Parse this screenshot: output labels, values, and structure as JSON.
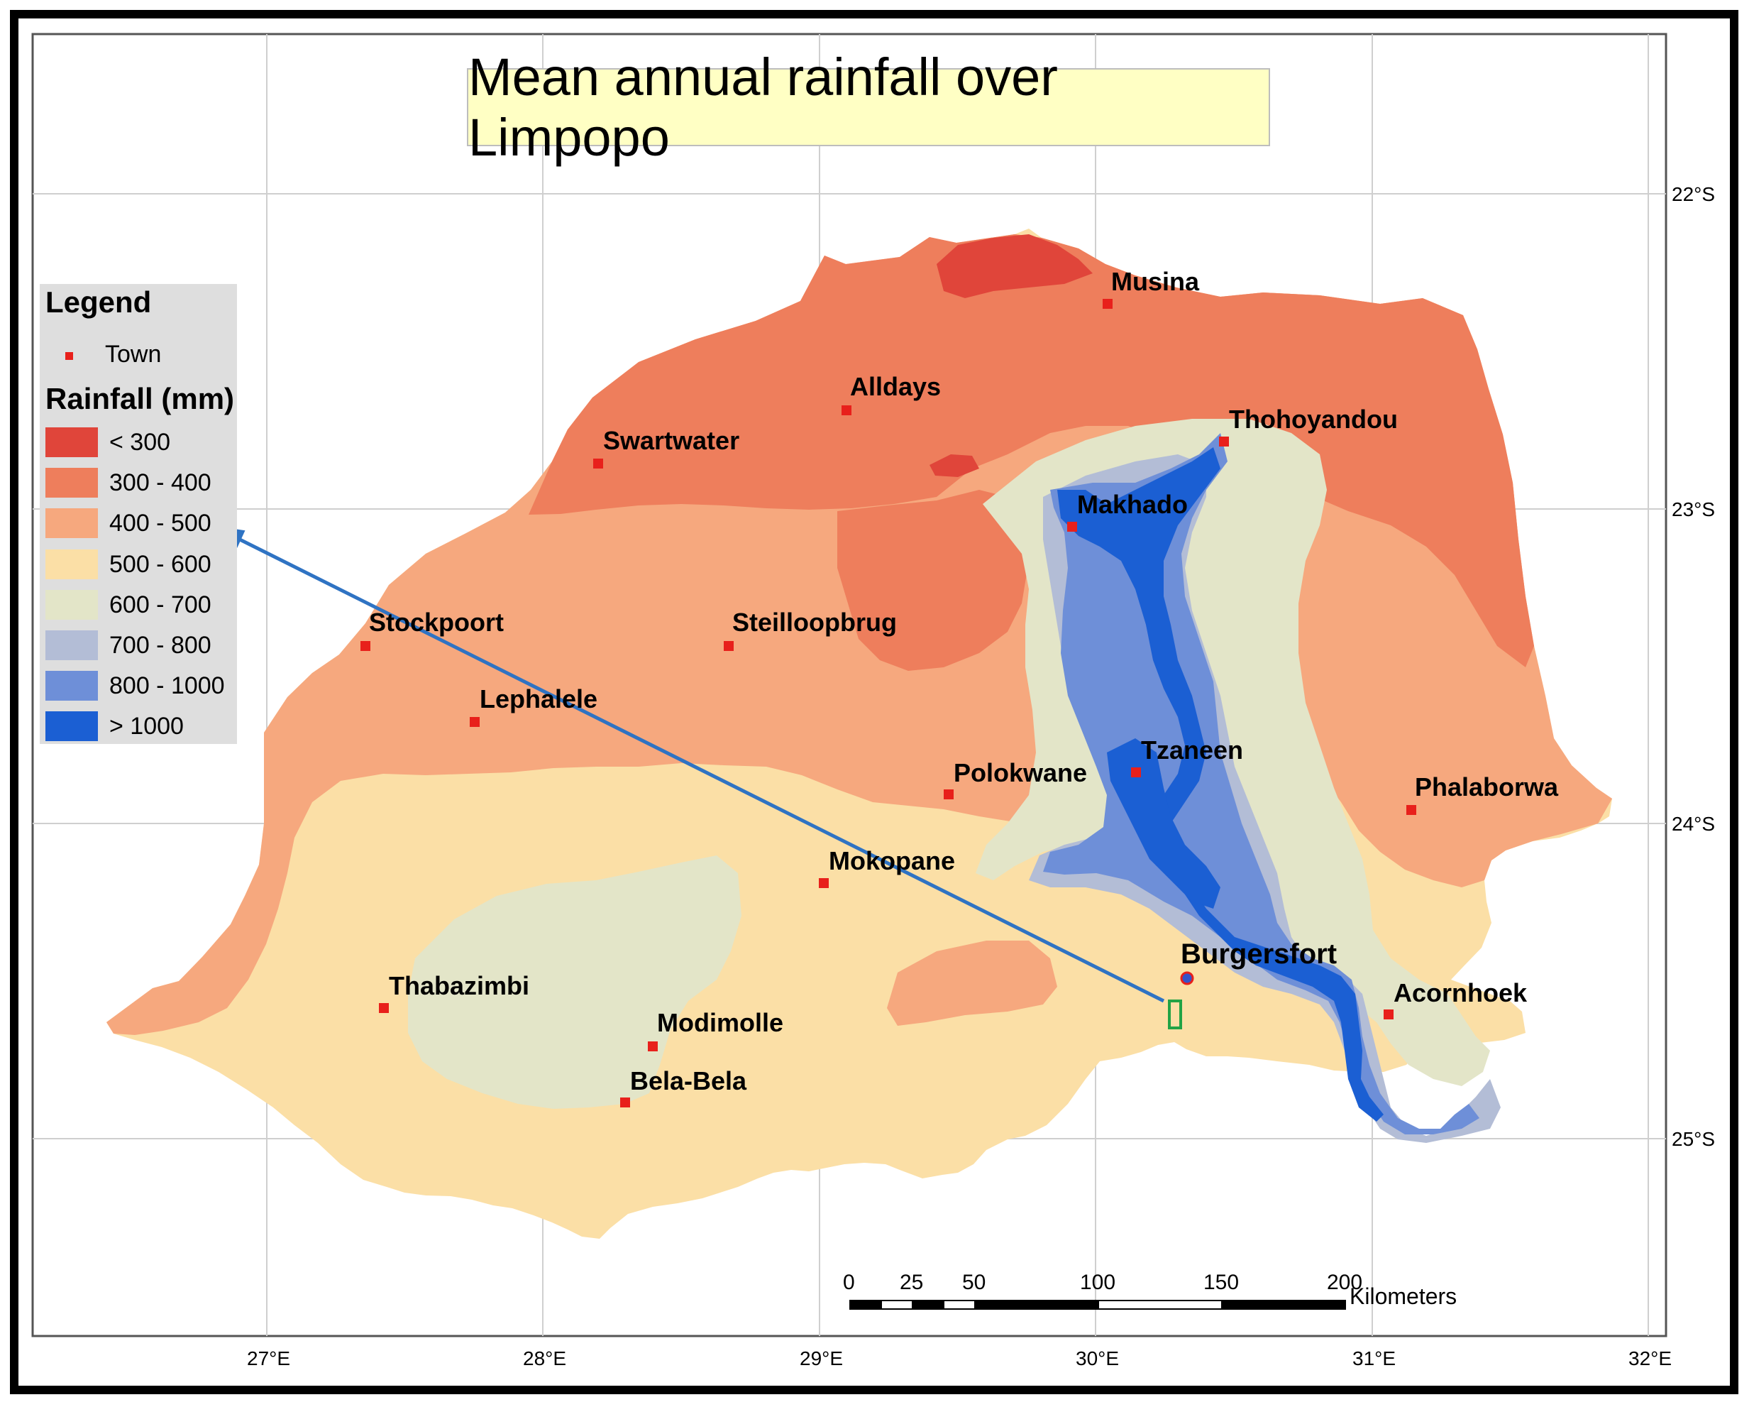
{
  "title": "Mean annual rainfall over Limpopo",
  "legend": {
    "heading": "Legend",
    "town_label": "Town",
    "rainfall_heading": "Rainfall (mm)",
    "classes": [
      {
        "label": "< 300",
        "color": "#e0453a"
      },
      {
        "label": "300 - 400",
        "color": "#ee7e5c"
      },
      {
        "label": "400 - 500",
        "color": "#f6a87e"
      },
      {
        "label": "500 - 600",
        "color": "#fbdfa6"
      },
      {
        "label": "600 - 700",
        "color": "#e3e5c8"
      },
      {
        "label": "700 - 800",
        "color": "#b3bdd6"
      },
      {
        "label": "800 - 1000",
        "color": "#6e8fd8"
      },
      {
        "label": "> 1000",
        "color": "#1b5fd3"
      }
    ]
  },
  "towns": [
    {
      "name": "Musina"
    },
    {
      "name": "Alldays"
    },
    {
      "name": "Swartwater"
    },
    {
      "name": "Thohoyandou"
    },
    {
      "name": "Makhado"
    },
    {
      "name": "Stockpoort"
    },
    {
      "name": "Steilloopbrug"
    },
    {
      "name": "Lephalele"
    },
    {
      "name": "Polokwane"
    },
    {
      "name": "Tzaneen"
    },
    {
      "name": "Phalaborwa"
    },
    {
      "name": "Mokopane"
    },
    {
      "name": "Burgersfort"
    },
    {
      "name": "Acornhoek"
    },
    {
      "name": "Thabazimbi"
    },
    {
      "name": "Modimolle"
    },
    {
      "name": "Bela-Bela"
    }
  ],
  "axes": {
    "longitudes": [
      "27°E",
      "28°E",
      "29°E",
      "30°E",
      "31°E",
      "32°E"
    ],
    "latitudes": [
      "22°S",
      "23°S",
      "24°S",
      "25°S"
    ]
  },
  "scale_bar": {
    "ticks": [
      "0",
      "25",
      "50",
      "100",
      "150",
      "200"
    ],
    "unit": "Kilometers"
  },
  "colors": {
    "arrow": "#2f73c3",
    "town_marker": "#e8201b",
    "site_marker": "#22a345",
    "title_bg": "#ffffc4"
  }
}
